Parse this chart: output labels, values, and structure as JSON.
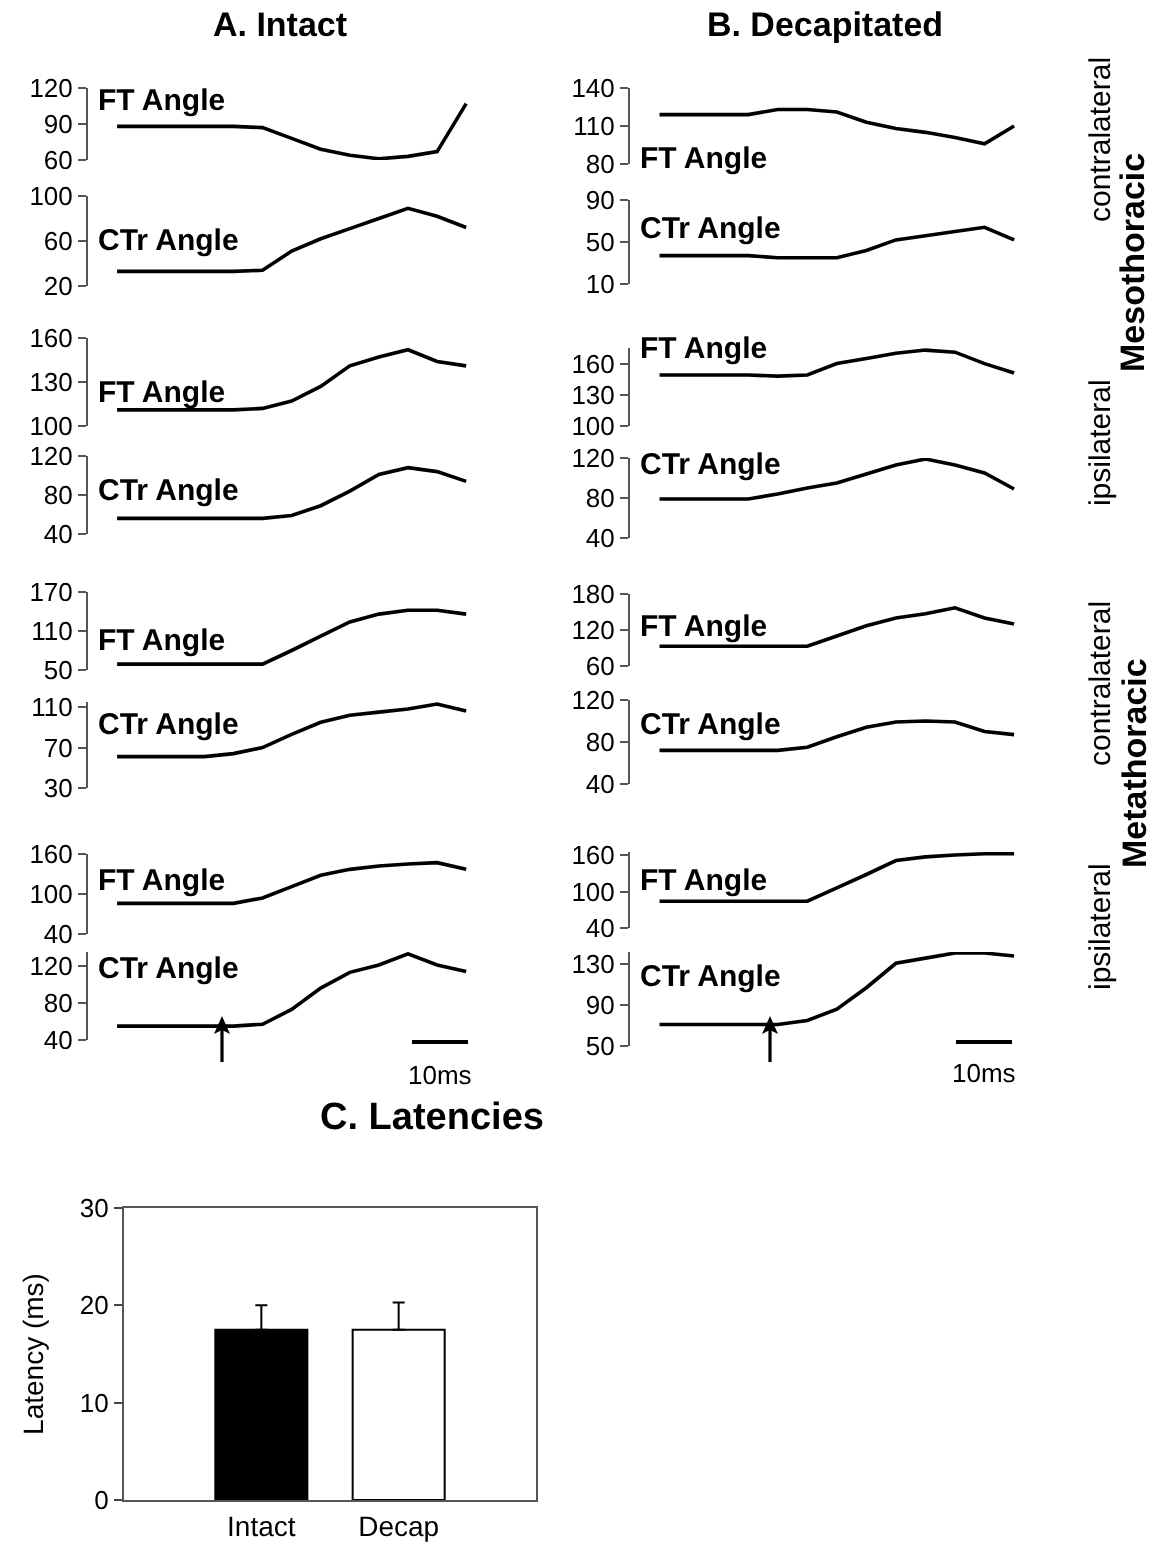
{
  "chart_data": [
    {
      "type": "line",
      "title": "A. Intact",
      "categories": [
        null,
        null,
        null,
        null,
        null,
        null,
        null,
        null,
        null,
        null,
        null,
        null,
        null
      ],
      "series": [
        {
          "color": "#000000",
          "values": [
            88,
            88,
            88,
            88,
            88,
            87,
            78,
            69,
            64,
            61,
            63,
            67,
            107
          ]
        }
      ],
      "ylim": [
        60,
        120
      ],
      "yticks": [
        60,
        90,
        120
      ],
      "tick_labels": "y",
      "annotations": [
        "FT Angle"
      ]
    },
    {
      "type": "line",
      "categories": [
        null,
        null,
        null,
        null,
        null,
        null,
        null,
        null,
        null,
        null,
        null,
        null,
        null
      ],
      "series": [
        {
          "color": "#000000",
          "values": [
            33,
            33,
            33,
            33,
            33,
            34,
            51,
            62,
            71,
            80,
            89,
            82,
            72
          ]
        }
      ],
      "ylim": [
        20,
        100
      ],
      "yticks": [
        20,
        60,
        100
      ],
      "tick_labels": "y",
      "annotations": [
        "CTr Angle"
      ]
    },
    {
      "type": "line",
      "categories": [
        null,
        null,
        null,
        null,
        null,
        null,
        null,
        null,
        null,
        null,
        null,
        null,
        null
      ],
      "series": [
        {
          "color": "#000000",
          "values": [
            111,
            111,
            111,
            111,
            111,
            112,
            117,
            127,
            141,
            147,
            152,
            144,
            141
          ]
        }
      ],
      "ylim": [
        100,
        160
      ],
      "yticks": [
        100,
        130,
        160
      ],
      "tick_labels": "y",
      "annotations": [
        "FT Angle"
      ]
    },
    {
      "type": "line",
      "categories": [
        null,
        null,
        null,
        null,
        null,
        null,
        null,
        null,
        null,
        null,
        null,
        null,
        null
      ],
      "series": [
        {
          "color": "#000000",
          "values": [
            56,
            56,
            56,
            56,
            56,
            56,
            59,
            69,
            84,
            101,
            108,
            104,
            94
          ]
        }
      ],
      "ylim": [
        40,
        120
      ],
      "yticks": [
        40,
        80,
        120
      ],
      "tick_labels": "y",
      "annotations": [
        "CTr Angle"
      ]
    },
    {
      "type": "line",
      "categories": [
        null,
        null,
        null,
        null,
        null,
        null,
        null,
        null,
        null,
        null,
        null,
        null,
        null
      ],
      "series": [
        {
          "color": "#000000",
          "values": [
            59,
            59,
            59,
            59,
            59,
            59,
            80,
            102,
            124,
            136,
            142,
            142,
            136
          ]
        }
      ],
      "ylim": [
        50,
        170
      ],
      "yticks": [
        50,
        110,
        170
      ],
      "tick_labels": "y",
      "annotations": [
        "FT Angle"
      ]
    },
    {
      "type": "line",
      "categories": [
        null,
        null,
        null,
        null,
        null,
        null,
        null,
        null,
        null,
        null,
        null,
        null,
        null
      ],
      "series": [
        {
          "color": "#000000",
          "values": [
            61,
            61,
            61,
            61,
            64,
            70,
            83,
            95,
            102,
            105,
            108,
            113,
            106
          ]
        }
      ],
      "ylim": [
        30,
        115
      ],
      "yticks": [
        30,
        70,
        110
      ],
      "tick_labels": "y",
      "annotations": [
        "CTr Angle"
      ]
    },
    {
      "type": "line",
      "categories": [
        null,
        null,
        null,
        null,
        null,
        null,
        null,
        null,
        null,
        null,
        null,
        null,
        null
      ],
      "series": [
        {
          "color": "#000000",
          "values": [
            86,
            86,
            86,
            86,
            86,
            94,
            111,
            128,
            137,
            142,
            145,
            147,
            137
          ]
        }
      ],
      "ylim": [
        40,
        160
      ],
      "yticks": [
        40,
        100,
        160
      ],
      "tick_labels": "y",
      "annotations": [
        "FT Angle"
      ]
    },
    {
      "type": "line",
      "categories": [
        null,
        null,
        null,
        null,
        null,
        null,
        null,
        null,
        null,
        null,
        null,
        null,
        null
      ],
      "series": [
        {
          "color": "#000000",
          "values": [
            55,
            55,
            55,
            55,
            55,
            57,
            73,
            96,
            113,
            121,
            133,
            121,
            114
          ]
        }
      ],
      "ylim": [
        40,
        135
      ],
      "yticks": [
        40,
        80,
        120
      ],
      "tick_labels": "y",
      "annotations": [
        "CTr Angle",
        "10ms"
      ]
    },
    {
      "type": "line",
      "title": "B. Decapitated",
      "categories": [
        null,
        null,
        null,
        null,
        null,
        null,
        null,
        null,
        null,
        null,
        null,
        null,
        null
      ],
      "series": [
        {
          "color": "#000000",
          "values": [
            119,
            119,
            119,
            119,
            123,
            123,
            121,
            113,
            108,
            105,
            101,
            96,
            110
          ]
        }
      ],
      "ylim": [
        80,
        140
      ],
      "yticks": [
        80,
        110,
        140
      ],
      "tick_labels": "y",
      "annotations": [
        "FT Angle",
        "contralateral"
      ]
    },
    {
      "type": "line",
      "categories": [
        null,
        null,
        null,
        null,
        null,
        null,
        null,
        null,
        null,
        null,
        null,
        null,
        null
      ],
      "series": [
        {
          "color": "#000000",
          "values": [
            37,
            37,
            37,
            37,
            35,
            35,
            35,
            42,
            52,
            56,
            60,
            64,
            52
          ]
        }
      ],
      "ylim": [
        10,
        90
      ],
      "yticks": [
        10,
        50,
        90
      ],
      "tick_labels": "y",
      "annotations": [
        "CTr Angle",
        "Mesothoracic"
      ]
    },
    {
      "type": "line",
      "categories": [
        null,
        null,
        null,
        null,
        null,
        null,
        null,
        null,
        null,
        null,
        null,
        null,
        null
      ],
      "series": [
        {
          "color": "#000000",
          "values": [
            149,
            149,
            149,
            149,
            148,
            149,
            160,
            165,
            170,
            173,
            171,
            160,
            151
          ]
        }
      ],
      "ylim": [
        100,
        175
      ],
      "yticks": [
        100,
        130,
        160
      ],
      "tick_labels": "y",
      "annotations": [
        "FT Angle",
        "ipsilateral"
      ]
    },
    {
      "type": "line",
      "categories": [
        null,
        null,
        null,
        null,
        null,
        null,
        null,
        null,
        null,
        null,
        null,
        null,
        null
      ],
      "series": [
        {
          "color": "#000000",
          "values": [
            79,
            79,
            79,
            79,
            84,
            90,
            95,
            104,
            113,
            119,
            113,
            105,
            89
          ]
        }
      ],
      "ylim": [
        40,
        120
      ],
      "yticks": [
        40,
        80,
        120
      ],
      "tick_labels": "y",
      "annotations": [
        "CTr Angle"
      ]
    },
    {
      "type": "line",
      "categories": [
        null,
        null,
        null,
        null,
        null,
        null,
        null,
        null,
        null,
        null,
        null,
        null,
        null
      ],
      "series": [
        {
          "color": "#000000",
          "values": [
            93,
            93,
            93,
            93,
            93,
            93,
            110,
            127,
            140,
            147,
            157,
            140,
            130
          ]
        }
      ],
      "ylim": [
        60,
        180
      ],
      "yticks": [
        60,
        120,
        180
      ],
      "tick_labels": "y",
      "annotations": [
        "FT Angle",
        "contralateral"
      ]
    },
    {
      "type": "line",
      "categories": [
        null,
        null,
        null,
        null,
        null,
        null,
        null,
        null,
        null,
        null,
        null,
        null,
        null
      ],
      "series": [
        {
          "color": "#000000",
          "values": [
            72,
            72,
            72,
            72,
            72,
            75,
            85,
            94,
            99,
            100,
            99,
            90,
            87
          ]
        }
      ],
      "ylim": [
        40,
        120
      ],
      "yticks": [
        40,
        80,
        120
      ],
      "tick_labels": "y",
      "annotations": [
        "CTr Angle",
        "Metathoracic"
      ]
    },
    {
      "type": "line",
      "categories": [
        null,
        null,
        null,
        null,
        null,
        null,
        null,
        null,
        null,
        null,
        null,
        null,
        null
      ],
      "series": [
        {
          "color": "#000000",
          "values": [
            84,
            84,
            84,
            84,
            84,
            84,
            106,
            128,
            151,
            157,
            160,
            162,
            162
          ]
        }
      ],
      "ylim": [
        40,
        165
      ],
      "yticks": [
        40,
        100,
        160
      ],
      "tick_labels": "y",
      "annotations": [
        "FT Angle",
        "ipsilateral"
      ]
    },
    {
      "type": "line",
      "categories": [
        null,
        null,
        null,
        null,
        null,
        null,
        null,
        null,
        null,
        null,
        null,
        null,
        null
      ],
      "series": [
        {
          "color": "#000000",
          "values": [
            71,
            71,
            71,
            71,
            71,
            75,
            86,
            107,
            131,
            136,
            141,
            141,
            138
          ]
        }
      ],
      "ylim": [
        50,
        142
      ],
      "yticks": [
        50,
        90,
        130
      ],
      "tick_labels": "y",
      "annotations": [
        "CTr Angle",
        "10ms"
      ]
    },
    {
      "type": "bar",
      "title": "C. Latencies",
      "ylabel": "Latency (ms)",
      "categories": [
        "Intact",
        "Decap"
      ],
      "values": [
        17.5,
        17.5
      ],
      "colors": [
        "#000000",
        "#ffffff"
      ],
      "errors": [
        [
          17.5,
          20
        ],
        [
          17.5,
          20.3
        ]
      ],
      "ylim": [
        0,
        30
      ],
      "yticks": [
        0,
        10,
        20,
        30
      ]
    }
  ]
}
